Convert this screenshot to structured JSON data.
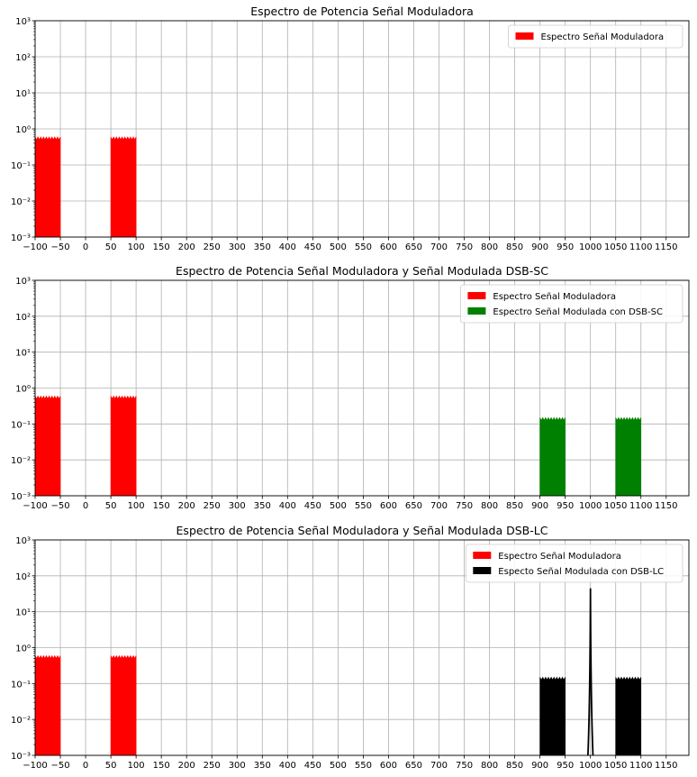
{
  "chart_data": [
    {
      "type": "area",
      "title": "Espectro de Potencia Señal Moduladora",
      "xlabel": "",
      "ylabel": "",
      "yscale": "log",
      "xlim": [
        -100,
        1195
      ],
      "ylim": [
        0.001,
        1000
      ],
      "xticks": [
        -100,
        -50,
        0,
        50,
        100,
        150,
        200,
        250,
        300,
        350,
        400,
        450,
        500,
        550,
        600,
        650,
        700,
        750,
        800,
        850,
        900,
        950,
        1000,
        1050,
        1100,
        1150
      ],
      "yticks": [
        0.001,
        0.01,
        0.1,
        1,
        10,
        100,
        1000
      ],
      "yticklabels": [
        "10⁻³",
        "10⁻²",
        "10⁻¹",
        "10⁰",
        "10¹",
        "10²",
        "10³"
      ],
      "grid": true,
      "legend_position": "top-right",
      "series": [
        {
          "name": "Espectro Señal Moduladora",
          "color": "#ff0000",
          "bands": [
            {
              "x": [
                -100,
                -50
              ],
              "y": 0.6
            },
            {
              "x": [
                50,
                100
              ],
              "y": 0.6
            }
          ]
        }
      ]
    },
    {
      "type": "area",
      "title": "Espectro de Potencia Señal Moduladora y Señal Modulada DSB-SC",
      "xlabel": "",
      "ylabel": "",
      "yscale": "log",
      "xlim": [
        -100,
        1195
      ],
      "ylim": [
        0.001,
        1000
      ],
      "xticks": [
        -100,
        -50,
        0,
        50,
        100,
        150,
        200,
        250,
        300,
        350,
        400,
        450,
        500,
        550,
        600,
        650,
        700,
        750,
        800,
        850,
        900,
        950,
        1000,
        1050,
        1100,
        1150
      ],
      "yticks": [
        0.001,
        0.01,
        0.1,
        1,
        10,
        100,
        1000
      ],
      "yticklabels": [
        "10⁻³",
        "10⁻²",
        "10⁻¹",
        "10⁰",
        "10¹",
        "10²",
        "10³"
      ],
      "grid": true,
      "legend_position": "top-right",
      "series": [
        {
          "name": "Espectro Señal Moduladora",
          "color": "#ff0000",
          "bands": [
            {
              "x": [
                -100,
                -50
              ],
              "y": 0.6
            },
            {
              "x": [
                50,
                100
              ],
              "y": 0.6
            }
          ]
        },
        {
          "name": "Espectro Señal Modulada con DSB-SC",
          "color": "#008000",
          "bands": [
            {
              "x": [
                900,
                950
              ],
              "y": 0.15
            },
            {
              "x": [
                1050,
                1100
              ],
              "y": 0.15
            }
          ]
        }
      ]
    },
    {
      "type": "area",
      "title": "Espectro de Potencia Señal Moduladora y Señal Modulada DSB-LC",
      "xlabel": "",
      "ylabel": "",
      "yscale": "log",
      "xlim": [
        -100,
        1195
      ],
      "ylim": [
        0.001,
        1000
      ],
      "xticks": [
        -100,
        -50,
        0,
        50,
        100,
        150,
        200,
        250,
        300,
        350,
        400,
        450,
        500,
        550,
        600,
        650,
        700,
        750,
        800,
        850,
        900,
        950,
        1000,
        1050,
        1100,
        1150
      ],
      "yticks": [
        0.001,
        0.01,
        0.1,
        1,
        10,
        100,
        1000
      ],
      "yticklabels": [
        "10⁻³",
        "10⁻²",
        "10⁻¹",
        "10⁰",
        "10¹",
        "10²",
        "10³"
      ],
      "grid": true,
      "legend_position": "top-right",
      "series": [
        {
          "name": "Espectro Señal Moduladora",
          "color": "#ff0000",
          "bands": [
            {
              "x": [
                -100,
                -50
              ],
              "y": 0.6
            },
            {
              "x": [
                50,
                100
              ],
              "y": 0.6
            }
          ]
        },
        {
          "name": "Especto Señal Modulada con DSB-LC",
          "color": "#000000",
          "bands": [
            {
              "x": [
                900,
                950
              ],
              "y": 0.15
            },
            {
              "x": [
                1050,
                1100
              ],
              "y": 0.15
            }
          ],
          "peaks": [
            {
              "x": 1000,
              "y": 45,
              "width": 5
            }
          ]
        }
      ]
    }
  ]
}
